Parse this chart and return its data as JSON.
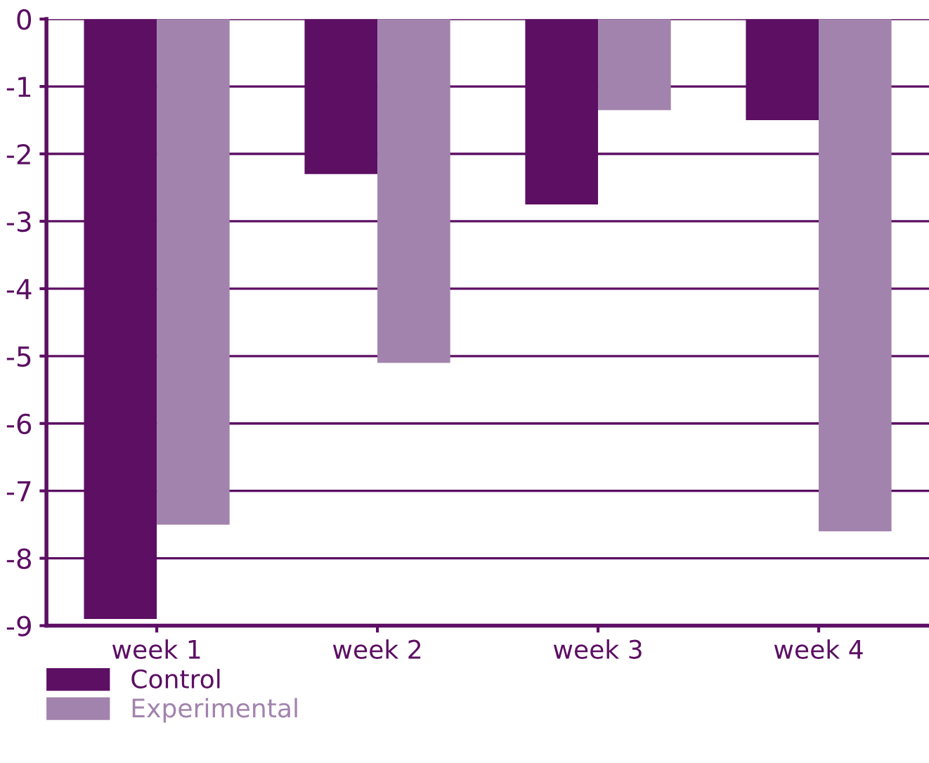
{
  "chart_data": {
    "type": "bar",
    "categories": [
      "week 1",
      "week 2",
      "week 3",
      "week 4"
    ],
    "series": [
      {
        "name": "Control",
        "color": "#5c0f63",
        "values": [
          -8.9,
          -2.3,
          -2.75,
          -1.5
        ]
      },
      {
        "name": "Experimental",
        "color": "#a283ad",
        "values": [
          -7.5,
          -5.1,
          -1.35,
          -7.6
        ]
      }
    ],
    "ylim": [
      -9,
      0
    ],
    "yticks": [
      -9,
      -8,
      -7,
      -6,
      -5,
      -4,
      -3,
      -2,
      -1,
      0
    ],
    "grid": "y",
    "legend": "bottom left"
  }
}
